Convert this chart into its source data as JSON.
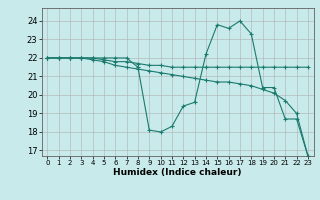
{
  "xlabel": "Humidex (Indice chaleur)",
  "bg_color": "#c8eaea",
  "grid_color": "#b0b0b0",
  "line_color": "#1a7a6e",
  "xlim": [
    -0.5,
    23.5
  ],
  "ylim": [
    16.7,
    24.7
  ],
  "yticks": [
    17,
    18,
    19,
    20,
    21,
    22,
    23,
    24
  ],
  "xticks": [
    0,
    1,
    2,
    3,
    4,
    5,
    6,
    7,
    8,
    9,
    10,
    11,
    12,
    13,
    14,
    15,
    16,
    17,
    18,
    19,
    20,
    21,
    22,
    23
  ],
  "lines": [
    {
      "x": [
        0,
        1,
        2,
        3,
        4,
        5,
        6,
        7,
        8,
        9,
        10,
        11,
        12,
        13,
        14,
        15,
        16,
        17,
        18,
        19,
        20,
        21,
        22,
        23
      ],
      "y": [
        22,
        22,
        22,
        22,
        22,
        22,
        22,
        22,
        21.5,
        18.1,
        18.0,
        18.3,
        19.4,
        19.6,
        22.2,
        23.8,
        23.6,
        24.0,
        23.3,
        20.4,
        20.4,
        18.7,
        18.7,
        16.7
      ]
    },
    {
      "x": [
        0,
        1,
        2,
        3,
        4,
        5,
        6,
        7,
        8,
        9,
        10,
        11,
        12,
        13,
        14,
        15,
        16,
        17,
        18,
        19,
        20,
        21,
        22,
        23
      ],
      "y": [
        22,
        22,
        22,
        22,
        21.9,
        21.8,
        21.6,
        21.5,
        21.4,
        21.3,
        21.2,
        21.1,
        21.0,
        20.9,
        20.8,
        20.7,
        20.7,
        20.6,
        20.5,
        20.3,
        20.1,
        19.7,
        19.0,
        16.7
      ]
    },
    {
      "x": [
        0,
        1,
        2,
        3,
        4,
        5,
        6,
        7,
        8,
        9,
        10,
        11,
        12,
        13,
        14,
        15,
        16,
        17,
        18,
        19,
        20,
        21,
        22,
        23
      ],
      "y": [
        22,
        22,
        22,
        22,
        22,
        21.9,
        21.8,
        21.8,
        21.7,
        21.6,
        21.6,
        21.5,
        21.5,
        21.5,
        21.5,
        21.5,
        21.5,
        21.5,
        21.5,
        21.5,
        21.5,
        21.5,
        21.5,
        21.5
      ]
    }
  ]
}
